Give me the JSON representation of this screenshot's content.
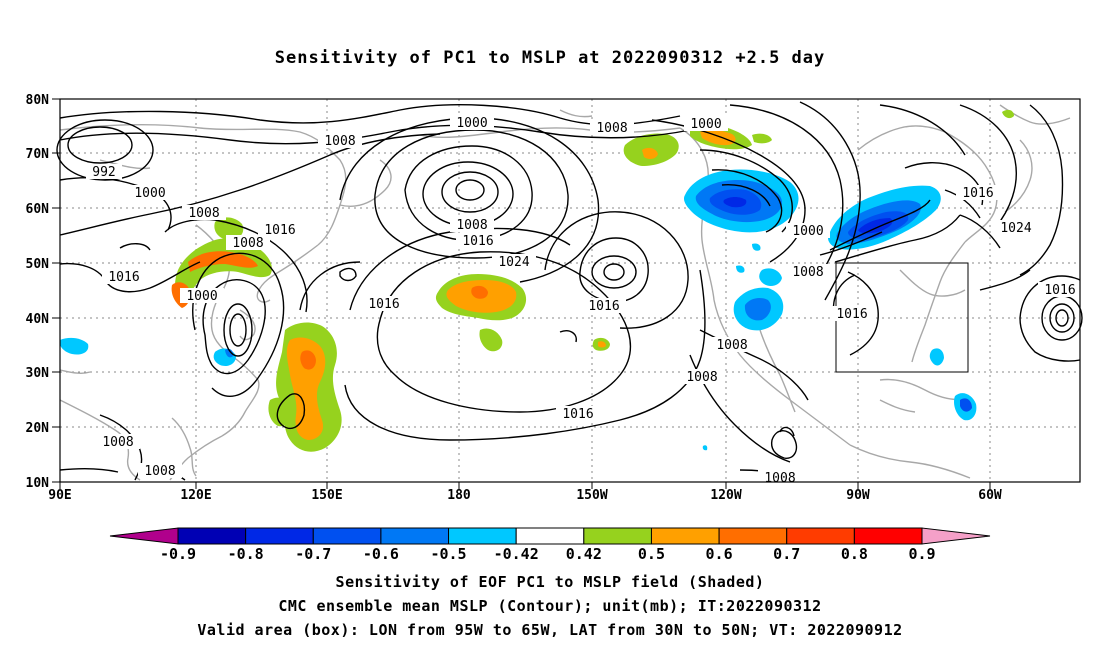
{
  "title": "Sensitivity of PC1 to MSLP at 2022090312 +2.5 day",
  "lat_labels": [
    "80N",
    "70N",
    "60N",
    "50N",
    "40N",
    "30N",
    "20N",
    "10N"
  ],
  "lon_labels": [
    "90E",
    "120E",
    "150E",
    "180",
    "150W",
    "120W",
    "90W",
    "60W"
  ],
  "contour_labels": [
    {
      "text": "1000"
    },
    {
      "text": "1008"
    },
    {
      "text": "1008"
    },
    {
      "text": "1000"
    },
    {
      "text": "992"
    },
    {
      "text": "1000"
    },
    {
      "text": "1008"
    },
    {
      "text": "1016"
    },
    {
      "text": "1008"
    },
    {
      "text": "1008"
    },
    {
      "text": "1016"
    },
    {
      "text": "1000"
    },
    {
      "text": "1016"
    },
    {
      "text": "1016"
    },
    {
      "text": "1024"
    },
    {
      "text": "1016"
    },
    {
      "text": "1000"
    },
    {
      "text": "1008"
    },
    {
      "text": "1016"
    },
    {
      "text": "1024"
    },
    {
      "text": "1016"
    },
    {
      "text": "1016"
    },
    {
      "text": "1008"
    },
    {
      "text": "1008"
    },
    {
      "text": "1016"
    },
    {
      "text": "1008"
    },
    {
      "text": "1008"
    },
    {
      "text": "1008"
    }
  ],
  "colorbar": {
    "colors": [
      "#b0008c",
      "#0000b4",
      "#0028e6",
      "#0050f0",
      "#0078f5",
      "#00c8ff",
      "#ffffff",
      "#96d21e",
      "#ffa000",
      "#ff6e00",
      "#ff3c00",
      "#ff0000",
      "#f5a0c8"
    ],
    "labels": [
      "-0.9",
      "-0.8",
      "-0.7",
      "-0.6",
      "-0.5",
      "-0.42",
      "0.42",
      "0.5",
      "0.6",
      "0.7",
      "0.8",
      "0.9"
    ]
  },
  "footer": {
    "line1": "Sensitivity of EOF PC1 to MSLP field (Shaded)",
    "line2": "CMC ensemble mean MSLP (Contour); unit(mb); IT:2022090312",
    "line3": "Valid area (box): LON from 95W to 65W, LAT from 30N to 50N; VT: 2022090912"
  }
}
